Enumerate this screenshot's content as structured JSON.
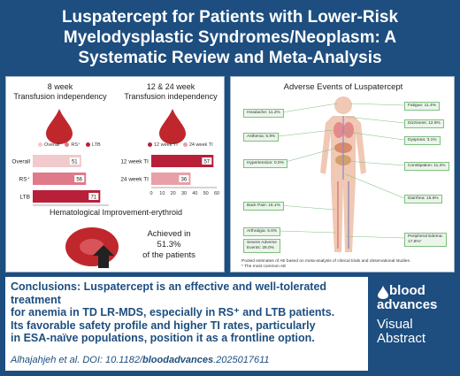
{
  "title": "Luspatercept for Patients with Lower-Risk Myelodysplastic Syndromes/Neoplasm: A Systematic Review and Meta-Analysis",
  "left_panel": {
    "ti_left_label": "8 week\nTransfusion independency",
    "ti_right_label": "12 & 24 week\nTransfusion independency",
    "legend_left": [
      "Overall",
      "RS⁺",
      "LTB"
    ],
    "legend_right": [
      "12 week TI",
      "24 week TI"
    ],
    "hi_title": "Hematological Improvement-erythroid",
    "achieved_line1": "Achieved in",
    "achieved_value": "51.3%",
    "achieved_line3": "of the patients"
  },
  "chart_data": [
    {
      "type": "bar",
      "orientation": "horizontal",
      "categories": [
        "Overall",
        "RS⁺",
        "LTB"
      ],
      "values": [
        51,
        56,
        71
      ],
      "value_labels": [
        "51",
        "56",
        "71"
      ],
      "xlim": [
        0,
        80
      ],
      "xticks": [
        "0",
        "10",
        "20",
        "30",
        "40",
        "50",
        "60",
        "70",
        "80"
      ],
      "colors": [
        "#f2c9cc",
        "#e0798a",
        "#b8203a"
      ]
    },
    {
      "type": "bar",
      "orientation": "horizontal",
      "categories": [
        "12 week TI",
        "24 week TI"
      ],
      "values": [
        57,
        36
      ],
      "value_labels": [
        "57",
        "36"
      ],
      "xlim": [
        0,
        60
      ],
      "xticks": [
        "0",
        "10",
        "20",
        "30",
        "40",
        "50",
        "60"
      ],
      "colors": [
        "#b8203a",
        "#e8a0a8"
      ]
    }
  ],
  "right_panel": {
    "title": "Adverse Events of Luspatercept",
    "left_boxes": [
      "Headache: 11.2%",
      "Asthenia: 5.9%",
      "Hypertension: 0.0%",
      "Back Pain: 16.1%",
      "Arthralgia: 5.6%",
      "Severe Adverse\nEvents: 28.0%"
    ],
    "right_boxes": [
      "Fatigue: 11.4%",
      "Dizziness: 12.9%",
      "Dyspnea: 3.1%",
      "Constipation: 11.2%",
      "Diarrhea: 15.6%",
      "Peripheral Edema:\n17.8%*"
    ],
    "note_line1": "Pooled estimates of AE based on meta-analysis of clinical trials and observational studies.",
    "note_line2": "* The most common AE"
  },
  "conclusions": {
    "label": "Conclusions:",
    "line1": "Luspatercept is an effective and well-tolerated treatment",
    "line2": "for anemia in TD LR-MDS, especially in RS⁺ and LTB patients.",
    "line3": "Its favorable safety profile and higher TI rates, particularly",
    "line4": "in ESA-naïve populations, position it as a frontline option."
  },
  "citation": {
    "prefix": "Alhajahjeh et al. DOI: 10.1182/",
    "journal": "bloodadvances",
    "suffix": ".2025017611"
  },
  "logo": {
    "blood": "blood",
    "advances": "advances",
    "visual": "Visual",
    "abstract": "Abstract"
  },
  "colors": {
    "brand": "#1d4e7f",
    "blood_red": "#c0272d",
    "ae_box_fill": "#eaf6ea"
  }
}
